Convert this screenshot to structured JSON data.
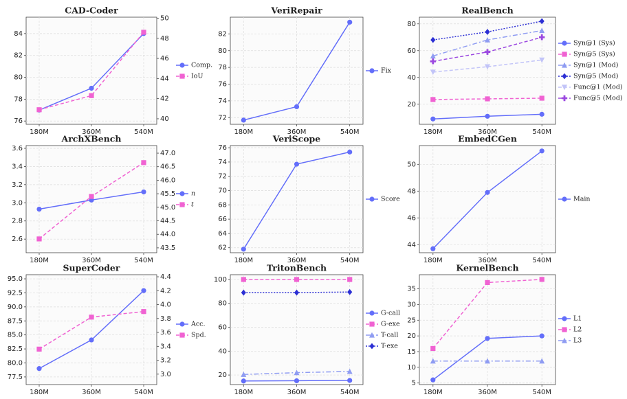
{
  "chart_data": [
    {
      "type": "line",
      "title": "CAD-Coder",
      "categories": [
        "180M",
        "360M",
        "540M"
      ],
      "ylim": [
        75.7,
        85.5
      ],
      "yticks": [
        76,
        78,
        80,
        82,
        84
      ],
      "y2lim": [
        39.45,
        50.1
      ],
      "y2ticks": [
        40,
        42,
        44,
        46,
        48,
        50
      ],
      "grid": true,
      "series": [
        {
          "name": "Comp.",
          "color": "#636efa",
          "dash": "solid",
          "marker": "circle",
          "values": [
            77,
            79,
            84
          ]
        },
        {
          "name": "IoU",
          "color": "#f062d2",
          "dash": "dashed",
          "marker": "square",
          "axis": "y2",
          "values": [
            40.9,
            42.3,
            48.6
          ]
        }
      ]
    },
    {
      "type": "line",
      "title": "VeriRepair",
      "categories": [
        "180M",
        "360M",
        "540M"
      ],
      "ylim": [
        71.2,
        84
      ],
      "yticks": [
        72,
        74,
        76,
        78,
        80,
        82
      ],
      "grid": true,
      "series": [
        {
          "name": "Fix",
          "color": "#636efa",
          "dash": "solid",
          "marker": "circle",
          "values": [
            71.7,
            73.3,
            83.4
          ]
        }
      ]
    },
    {
      "type": "line",
      "title": "RealBench",
      "categories": [
        "180M",
        "360M",
        "540M"
      ],
      "ylim": [
        5,
        85
      ],
      "yticks": [
        20,
        40,
        60,
        80
      ],
      "grid": true,
      "series": [
        {
          "name": "Syn@1 (Sys)",
          "color": "#636efa",
          "dash": "solid",
          "marker": "circle",
          "values": [
            9,
            11,
            12.5
          ]
        },
        {
          "name": "Syn@5 (Sys)",
          "color": "#f062d2",
          "dash": "dashed",
          "marker": "square",
          "values": [
            23.5,
            24,
            24.5
          ]
        },
        {
          "name": "Syn@1 (Mod)",
          "color": "#8f9cf2",
          "dash": "dashdot",
          "marker": "triangle",
          "values": [
            56,
            68,
            75
          ]
        },
        {
          "name": "Syn@5 (Mod)",
          "color": "#2c2fd4",
          "dash": "dotted",
          "marker": "diamond",
          "values": [
            68,
            74,
            82
          ]
        },
        {
          "name": "Func@1 (Mod)",
          "color": "#c2c4f8",
          "dash": "dashed",
          "marker": "triangle-down",
          "values": [
            44,
            48,
            53
          ]
        },
        {
          "name": "Func@5 (Mod)",
          "color": "#9b48e0",
          "dash": "dashed",
          "marker": "plus",
          "values": [
            52,
            59,
            70
          ]
        }
      ]
    },
    {
      "type": "line",
      "title": "ArchXBench",
      "categories": [
        "180M",
        "360M",
        "540M"
      ],
      "ylim": [
        2.45,
        3.63
      ],
      "yticks": [
        2.6,
        2.8,
        {
          "value": 3.0,
          "label": "3.0"
        },
        3.2,
        3.4,
        3.6
      ],
      "y2lim": [
        43.32,
        47.28
      ],
      "y2ticks": [
        43.5,
        {
          "value": 44.0,
          "label": "44.0"
        },
        44.5,
        {
          "value": 45.0,
          "label": "45.0"
        },
        45.5,
        {
          "value": 46.0,
          "label": "46.0"
        },
        46.5,
        {
          "value": 47.0,
          "label": "47.0"
        }
      ],
      "grid": true,
      "series": [
        {
          "name": "n",
          "color": "#636efa",
          "dash": "solid",
          "marker": "circle",
          "values": [
            2.93,
            3.03,
            3.12
          ]
        },
        {
          "name": "t",
          "color": "#f062d2",
          "dash": "dashed",
          "marker": "square",
          "axis": "y2",
          "values": [
            43.83,
            45.4,
            46.65
          ]
        }
      ]
    },
    {
      "type": "line",
      "title": "VeriScope",
      "categories": [
        "180M",
        "360M",
        "540M"
      ],
      "ylim": [
        61.3,
        76.3
      ],
      "yticks": [
        62,
        64,
        66,
        68,
        70,
        72,
        74,
        76
      ],
      "grid": true,
      "series": [
        {
          "name": "Score",
          "color": "#636efa",
          "dash": "solid",
          "marker": "circle",
          "values": [
            61.8,
            73.7,
            75.4
          ]
        }
      ]
    },
    {
      "type": "line",
      "title": "EmbedCGen",
      "categories": [
        "180M",
        "360M",
        "540M"
      ],
      "ylim": [
        43.4,
        51.4
      ],
      "yticks": [
        44,
        46,
        48,
        50
      ],
      "grid": true,
      "series": [
        {
          "name": "Main",
          "color": "#636efa",
          "dash": "solid",
          "marker": "circle",
          "values": [
            43.7,
            47.9,
            51.0
          ]
        }
      ]
    },
    {
      "type": "line",
      "title": "SuperCoder",
      "categories": [
        "180M",
        "360M",
        "540M"
      ],
      "ylim": [
        76.14,
        95.74
      ],
      "yticks": [
        77.5,
        {
          "value": 80.0,
          "label": "80.0"
        },
        82.5,
        {
          "value": 85.0,
          "label": "85.0"
        },
        87.5,
        {
          "value": 90.0,
          "label": "90.0"
        },
        92.5,
        {
          "value": 95.0,
          "label": "95.0"
        }
      ],
      "y2lim": [
        2.85,
        4.43
      ],
      "y2ticks": [
        {
          "value": 3.0,
          "label": "3.0"
        },
        3.2,
        3.4,
        3.6,
        3.8,
        {
          "value": 4.0,
          "label": "4.0"
        },
        4.2,
        4.4
      ],
      "grid": true,
      "series": [
        {
          "name": "Acc.",
          "color": "#636efa",
          "dash": "solid",
          "marker": "circle",
          "values": [
            79,
            84.1,
            92.9
          ]
        },
        {
          "name": "Spd.",
          "color": "#f062d2",
          "dash": "dashed",
          "marker": "square",
          "axis": "y2",
          "values": [
            3.36,
            3.82,
            3.9
          ]
        }
      ]
    },
    {
      "type": "line",
      "title": "TritonBench",
      "categories": [
        "180M",
        "360M",
        "540M"
      ],
      "ylim": [
        12,
        104
      ],
      "yticks": [
        20,
        40,
        60,
        80,
        100
      ],
      "grid": true,
      "series": [
        {
          "name": "G-call",
          "color": "#636efa",
          "dash": "solid",
          "marker": "circle",
          "values": [
            15,
            15.2,
            15.5
          ]
        },
        {
          "name": "G-exe",
          "color": "#f062d2",
          "dash": "dashed",
          "marker": "square",
          "values": [
            100,
            100,
            100
          ]
        },
        {
          "name": "T-call",
          "color": "#8f9cf2",
          "dash": "dashdot",
          "marker": "triangle",
          "values": [
            20.5,
            22,
            23
          ]
        },
        {
          "name": "T-exe",
          "color": "#2c2fd4",
          "dash": "dotted",
          "marker": "diamond",
          "values": [
            89,
            89,
            89.5
          ]
        }
      ]
    },
    {
      "type": "line",
      "title": "KernelBench",
      "categories": [
        "180M",
        "360M",
        "540M"
      ],
      "ylim": [
        4.5,
        39.5
      ],
      "yticks": [
        5,
        10,
        15,
        20,
        25,
        30,
        35
      ],
      "grid": true,
      "series": [
        {
          "name": "L1",
          "color": "#636efa",
          "dash": "solid",
          "marker": "circle",
          "values": [
            6,
            19.2,
            20
          ]
        },
        {
          "name": "L2",
          "color": "#f062d2",
          "dash": "dashed",
          "marker": "square",
          "values": [
            16,
            37,
            38
          ]
        },
        {
          "name": "L3",
          "color": "#8f9cf2",
          "dash": "dashdot",
          "marker": "triangle",
          "values": [
            12,
            12,
            12
          ]
        }
      ]
    }
  ]
}
